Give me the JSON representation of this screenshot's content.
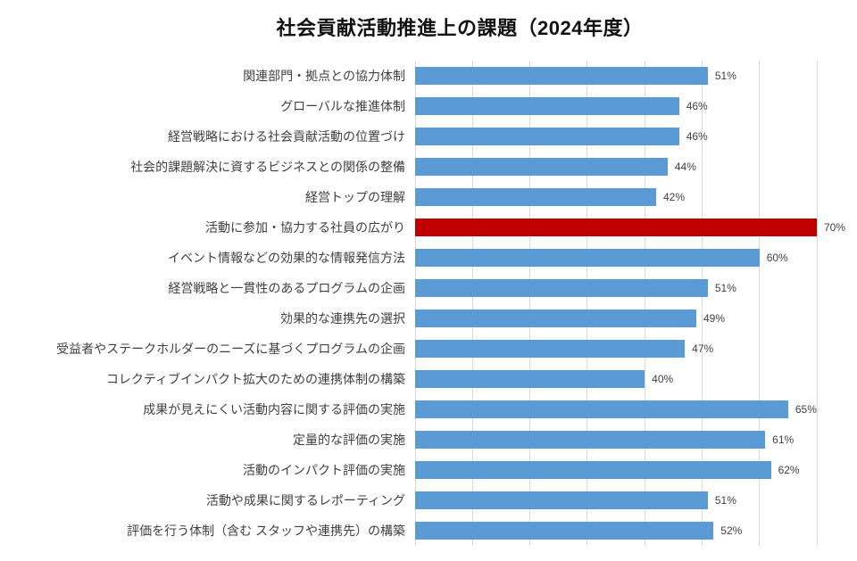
{
  "chart_data": {
    "type": "bar",
    "orientation": "horizontal",
    "title": "社会貢献活動推進上の課題（2024年度）",
    "categories": [
      "関連部門・拠点との協力体制",
      "グローバルな推進体制",
      "経営戦略における社会貢献活動の位置づけ",
      "社会的課題解決に資するビジネスとの関係の整備",
      "経営トップの理解",
      "活動に参加・協力する社員の広がり",
      "イベント情報などの効果的な情報発信方法",
      "経営戦略と一貫性のあるプログラムの企画",
      "効果的な連携先の選択",
      "受益者やステークホルダーのニーズに基づくプログラムの企画",
      "コレクティブインパクト拡大のための連携体制の構築",
      "成果が見えにくい活動内容に関する評価の実施",
      "定量的な評価の実施",
      "活動のインパクト評価の実施",
      "活動や成果に関するレポーティング",
      "評価を行う体制（含む スタッフや連携先）の構築"
    ],
    "values": [
      51,
      46,
      46,
      44,
      42,
      70,
      60,
      51,
      49,
      47,
      40,
      65,
      61,
      62,
      51,
      52
    ],
    "data_labels": [
      "51%",
      "46%",
      "46%",
      "44%",
      "42%",
      "70%",
      "60%",
      "51%",
      "49%",
      "47%",
      "40%",
      "65%",
      "61%",
      "62%",
      "51%",
      "52%"
    ],
    "xlim": [
      0,
      70
    ],
    "gridline_interval": 10,
    "grid": "vertical",
    "legend": "none",
    "highlight_index": 5,
    "colors": {
      "bar": "#5B9BD5",
      "highlight": "#C00000",
      "gridline": "#D9D9D9",
      "category_text": "#404040",
      "value_text": "#404040",
      "title_text": "#111111"
    }
  }
}
